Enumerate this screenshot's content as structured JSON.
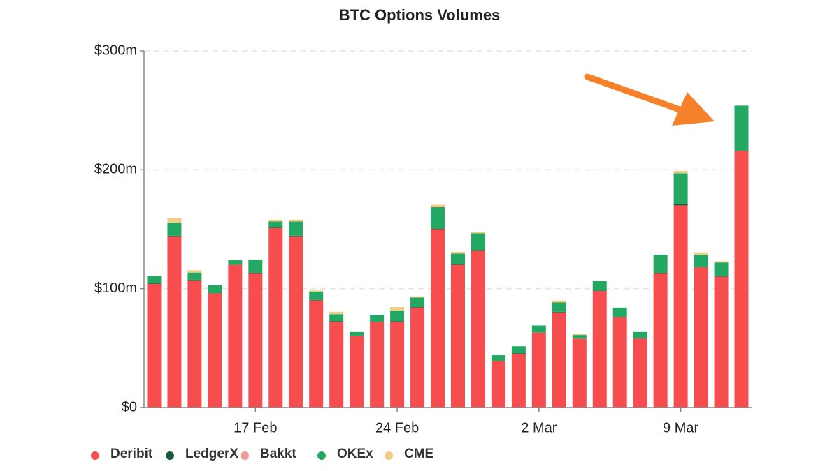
{
  "chart_data": {
    "type": "stacked_bar",
    "title": "BTC Options Volumes",
    "categories": [
      null,
      null,
      null,
      null,
      null,
      "17 Feb",
      null,
      null,
      null,
      null,
      null,
      null,
      "24 Feb",
      null,
      null,
      null,
      null,
      null,
      null,
      "2 Mar",
      null,
      null,
      null,
      null,
      null,
      null,
      "9 Mar",
      null,
      null,
      null
    ],
    "series": [
      {
        "name": "Deribit",
        "color": "#f74d4f",
        "values": [
          104,
          144,
          107,
          96,
          120,
          113,
          151,
          144,
          90,
          72,
          60,
          72,
          72,
          84,
          150,
          120,
          132,
          39,
          45,
          63,
          80,
          58,
          98,
          76,
          58,
          113,
          170,
          118,
          110,
          216
        ]
      },
      {
        "name": "LedgerX",
        "color": "#1b5e3b",
        "values": [
          0.5,
          0.5,
          0.5,
          0,
          0,
          0.5,
          0.5,
          0.5,
          0.5,
          0.5,
          0.5,
          0,
          0.5,
          0.5,
          0.5,
          0.5,
          0.5,
          0,
          0.5,
          0,
          0.5,
          0,
          0.5,
          0,
          0.5,
          0.5,
          1,
          0.5,
          1,
          0
        ]
      },
      {
        "name": "Bakkt",
        "color": "#f29a9a",
        "values": [
          0,
          0,
          0,
          0,
          0,
          0,
          0,
          0,
          0,
          0,
          0,
          0,
          0,
          0,
          0,
          0,
          0,
          0,
          0,
          0,
          0,
          0,
          0,
          0,
          0,
          0,
          0,
          0,
          0,
          0
        ]
      },
      {
        "name": "OKEx",
        "color": "#22a862",
        "values": [
          6,
          11,
          6,
          7,
          4,
          11,
          5,
          12,
          7,
          6,
          3,
          6,
          9,
          8,
          18,
          9,
          14,
          5,
          6,
          6,
          8,
          3,
          8,
          8,
          5,
          15,
          26,
          10,
          11,
          38
        ]
      },
      {
        "name": "CME",
        "color": "#f0cc84",
        "values": [
          0,
          4,
          2,
          0,
          0,
          0,
          1.5,
          1.5,
          1,
          2,
          0,
          0,
          3,
          1,
          2,
          1.5,
          1.5,
          0,
          0,
          0,
          1.5,
          1,
          0,
          0,
          0,
          0,
          2,
          2,
          1,
          0
        ]
      }
    ],
    "ylim": [
      0,
      300
    ],
    "yticks": [
      {
        "value": 0,
        "label": "$0"
      },
      {
        "value": 100,
        "label": "$100m"
      },
      {
        "value": 200,
        "label": "$200m"
      },
      {
        "value": 300,
        "label": "$300m"
      }
    ],
    "grid": true,
    "legend": "bottom"
  }
}
